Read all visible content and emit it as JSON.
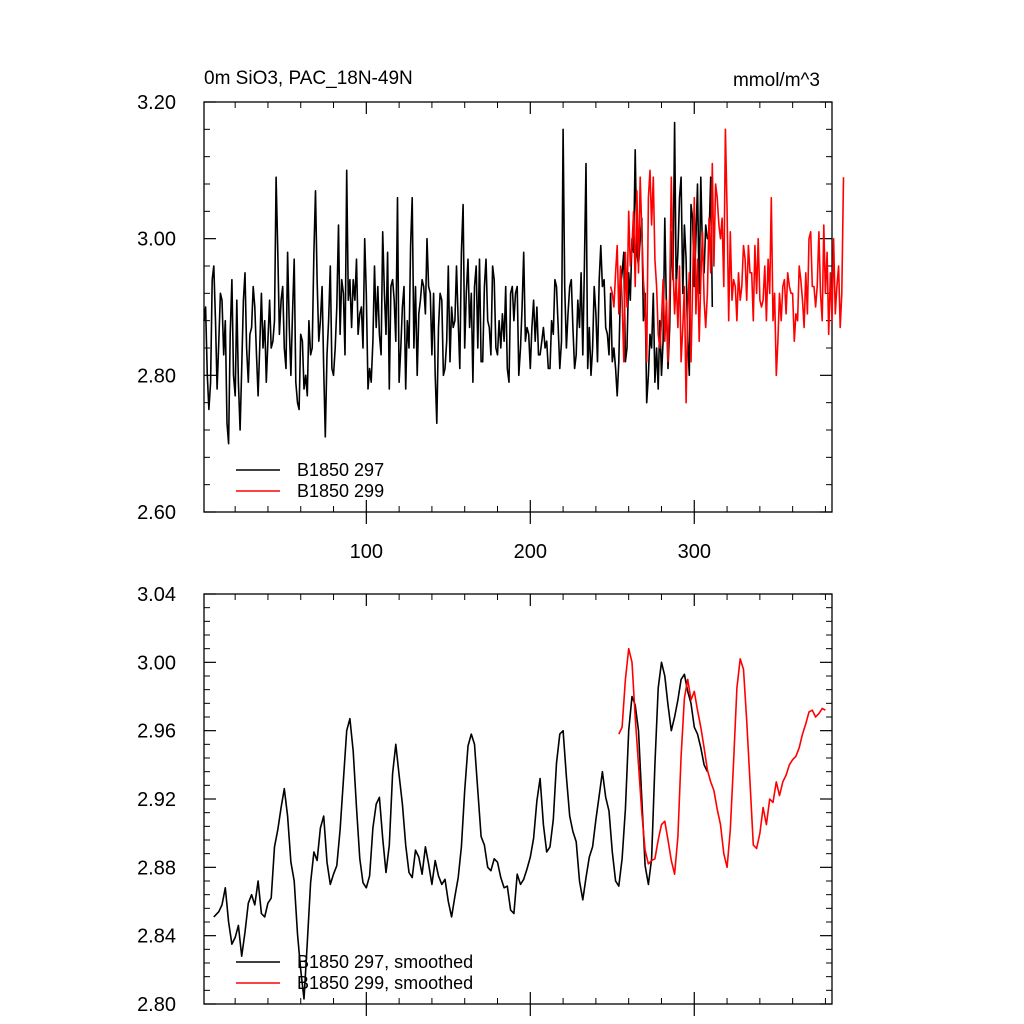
{
  "chart_data": [
    {
      "type": "line",
      "title": "0m SiO3, PAC_18N-49N",
      "units": "mmol/m^3",
      "xlim": [
        1,
        384
      ],
      "ylim": [
        2.6,
        3.2
      ],
      "x_ticks": [
        100,
        200,
        300
      ],
      "x_tick_labels": [
        "100",
        "200",
        "300"
      ],
      "y_ticks": [
        2.6,
        2.8,
        3.0,
        3.2
      ],
      "y_tick_labels": [
        "2.60",
        "2.80",
        "3.00",
        "3.20"
      ],
      "legend_position": "bottom-left",
      "series": [
        {
          "name": "B1850 297",
          "color": "#000000",
          "x_start": 1,
          "values": [
            2.88,
            2.9,
            2.8,
            2.75,
            2.79,
            2.94,
            2.96,
            2.88,
            2.78,
            2.85,
            2.92,
            2.91,
            2.83,
            2.88,
            2.73,
            2.7,
            2.86,
            2.94,
            2.8,
            2.77,
            2.91,
            2.79,
            2.72,
            2.81,
            2.91,
            2.95,
            2.84,
            2.79,
            2.86,
            2.87,
            2.93,
            2.9,
            2.83,
            2.77,
            2.84,
            2.92,
            2.84,
            2.88,
            2.79,
            2.85,
            2.91,
            2.84,
            2.85,
            2.88,
            3.09,
            2.98,
            2.86,
            2.91,
            2.93,
            2.84,
            2.81,
            2.98,
            2.87,
            2.8,
            2.89,
            2.97,
            2.79,
            2.76,
            2.75,
            2.86,
            2.85,
            2.78,
            2.8,
            2.77,
            2.88,
            2.83,
            2.84,
            2.98,
            3.07,
            2.94,
            2.85,
            2.88,
            2.93,
            2.81,
            2.71,
            2.83,
            2.88,
            2.96,
            2.81,
            2.8,
            2.84,
            2.9,
            3.02,
            2.86,
            2.94,
            2.92,
            2.83,
            3.1,
            2.91,
            2.94,
            2.87,
            2.94,
            2.91,
            2.97,
            2.86,
            2.89,
            2.9,
            2.84,
            3.0,
            2.92,
            2.78,
            2.81,
            2.79,
            2.85,
            2.96,
            2.87,
            2.93,
            2.86,
            2.83,
            3.01,
            2.92,
            2.86,
            2.98,
            2.78,
            2.93,
            2.94,
            2.91,
            2.85,
            3.06,
            2.79,
            2.84,
            2.9,
            2.93,
            2.78,
            2.88,
            2.84,
            2.99,
            3.06,
            2.84,
            2.93,
            2.8,
            2.89,
            2.91,
            2.94,
            2.93,
            2.89,
            3.0,
            2.93,
            2.92,
            2.83,
            2.92,
            2.8,
            2.73,
            2.87,
            2.92,
            2.91,
            2.8,
            2.81,
            2.85,
            2.96,
            2.82,
            2.9,
            2.87,
            2.88,
            2.96,
            2.88,
            2.81,
            2.98,
            3.05,
            2.84,
            2.92,
            2.97,
            2.87,
            2.92,
            2.79,
            2.93,
            2.96,
            2.84,
            2.97,
            2.82,
            2.82,
            2.93,
            2.97,
            2.88,
            2.87,
            2.83,
            2.96,
            2.94,
            2.84,
            2.83,
            2.88,
            2.84,
            2.89,
            2.85,
            2.93,
            2.81,
            2.79,
            2.92,
            2.93,
            2.88,
            2.92,
            2.93,
            2.8,
            2.84,
            2.9,
            2.98,
            2.85,
            2.87,
            2.86,
            2.81,
            2.87,
            2.91,
            2.85,
            2.9,
            2.83,
            2.83,
            2.85,
            2.87,
            2.84,
            2.85,
            2.81,
            2.81,
            2.88,
            2.86,
            2.94,
            2.93,
            2.87,
            2.81,
            2.85,
            3.16,
            2.93,
            2.84,
            2.89,
            2.93,
            2.94,
            2.87,
            2.81,
            2.83,
            2.91,
            2.87,
            2.95,
            2.83,
            2.96,
            3.11,
            2.81,
            2.87,
            2.8,
            2.84,
            2.93,
            2.89,
            2.82,
            2.94,
            2.99,
            2.93,
            2.94,
            2.87,
            2.86,
            2.83,
            2.92,
            2.82,
            2.84,
            2.81,
            2.77,
            2.82,
            2.93,
            2.95,
            2.98,
            2.82,
            2.84,
            2.95,
            2.91,
            3.0,
            2.98,
            3.13,
            2.98,
            2.96,
            3.0,
            3.03,
            2.88,
            2.92,
            2.76,
            2.8,
            2.86,
            2.84,
            2.92,
            2.79,
            2.84,
            2.78,
            2.88,
            2.8,
            2.85,
            3.03,
            2.9,
            2.81,
            2.87,
            3.01,
            2.94,
            3.17,
            2.93,
            2.98,
            3.06,
            3.09,
            2.92,
            3.02,
            2.97,
            2.85,
            2.8,
            3.05,
            3.03,
            2.93,
            3.0,
            3.08,
            2.92,
            3.09,
            2.98,
            2.95,
            3.02,
            3.0,
            3.0,
            3.09,
            2.9
          ]
        },
        {
          "name": "B1850 299",
          "color": "#ff0000",
          "x_start": 249,
          "values": [
            2.93,
            2.92,
            2.9,
            2.95,
            2.99,
            2.89,
            2.96,
            2.91,
            2.82,
            2.98,
            2.9,
            3.04,
            2.96,
            2.99,
            3.04,
            2.93,
            3.07,
            2.95,
            3.09,
            3.01,
            2.94,
            2.9,
            2.82,
            3.06,
            3.1,
            3.02,
            3.09,
            2.97,
            2.93,
            2.86,
            2.84,
            2.88,
            2.94,
            2.85,
            2.91,
            2.82,
            2.92,
            3.09,
            2.96,
            2.89,
            2.94,
            2.87,
            2.96,
            2.82,
            2.87,
            2.93,
            2.76,
            2.89,
            2.95,
            2.82,
            2.93,
            3.06,
            2.89,
            2.97,
            2.85,
            2.94,
            3.01,
            2.91,
            2.87,
            2.92,
            3.03,
            2.95,
            3.11,
            2.96,
            3.08,
            3.06,
            3.02,
            3.0,
            3.03,
            2.93,
            3.16,
            3.04,
            2.88,
            3.01,
            2.91,
            2.94,
            2.93,
            2.88,
            2.95,
            2.91,
            2.93,
            2.99,
            2.97,
            2.91,
            2.99,
            2.95,
            2.95,
            2.88,
            2.99,
            2.92,
            3.0,
            2.91,
            2.9,
            2.91,
            2.96,
            2.88,
            2.97,
            2.92,
            3.06,
            2.88,
            2.92,
            2.8,
            2.85,
            2.92,
            2.88,
            2.93,
            2.94,
            2.89,
            2.95,
            2.93,
            2.92,
            2.92,
            2.85,
            2.89,
            2.88,
            2.96,
            2.94,
            2.91,
            2.87,
            2.95,
            2.89,
            3.0,
            3.01,
            2.93,
            2.93,
            2.9,
            2.93,
            3.01,
            2.92,
            2.88,
            3.02,
            2.92,
            2.98,
            2.86,
            2.95,
            2.88,
            3.0,
            2.89,
            2.93,
            2.96,
            2.87,
            2.92,
            3.09
          ]
        }
      ]
    },
    {
      "type": "line",
      "title": "",
      "xlim": [
        1,
        384
      ],
      "ylim": [
        2.8,
        3.04
      ],
      "y_ticks": [
        2.8,
        2.84,
        2.88,
        2.92,
        2.96,
        3.0,
        3.04
      ],
      "y_tick_labels": [
        "2.80",
        "2.84",
        "2.88",
        "2.92",
        "2.96",
        "3.00",
        "3.04"
      ],
      "legend_position": "bottom-left",
      "series": [
        {
          "name": "B1850 297, smoothed",
          "color": "#000000",
          "x": [
            7,
            10,
            12,
            14,
            16,
            18,
            20,
            22,
            24,
            26,
            28,
            30,
            32,
            34,
            36,
            38,
            40,
            42,
            44,
            46,
            48,
            50,
            52,
            54,
            56,
            58,
            60,
            62,
            64,
            66,
            68,
            70,
            72,
            74,
            76,
            78,
            80,
            82,
            84,
            86,
            88,
            90,
            92,
            94,
            96,
            98,
            100,
            102,
            104,
            106,
            108,
            110,
            112,
            114,
            116,
            118,
            120,
            122,
            124,
            126,
            128,
            130,
            132,
            134,
            136,
            138,
            140,
            142,
            144,
            146,
            148,
            150,
            152,
            154,
            156,
            158,
            160,
            162,
            164,
            166,
            168,
            170,
            172,
            174,
            176,
            178,
            180,
            182,
            184,
            186,
            188,
            190,
            192,
            194,
            196,
            198,
            200,
            202,
            204,
            206,
            208,
            210,
            212,
            214,
            216,
            218,
            220,
            222,
            224,
            226,
            228,
            230,
            232,
            234,
            236,
            238,
            240,
            242,
            244,
            246,
            248,
            250,
            252,
            254,
            256,
            258,
            260,
            262,
            264,
            266,
            268,
            270,
            272,
            274,
            276,
            278,
            280,
            282,
            284,
            286,
            288,
            290,
            292,
            294,
            296,
            298,
            300,
            302,
            304,
            306,
            308
          ],
          "values": [
            2.851,
            2.854,
            2.858,
            2.868,
            2.848,
            2.835,
            2.839,
            2.846,
            2.828,
            2.842,
            2.859,
            2.864,
            2.858,
            2.872,
            2.853,
            2.851,
            2.859,
            2.862,
            2.892,
            2.902,
            2.915,
            2.926,
            2.91,
            2.883,
            2.872,
            2.841,
            2.82,
            2.803,
            2.836,
            2.871,
            2.889,
            2.884,
            2.903,
            2.91,
            2.883,
            2.87,
            2.876,
            2.881,
            2.902,
            2.931,
            2.96,
            2.967,
            2.948,
            2.915,
            2.885,
            2.871,
            2.868,
            2.875,
            2.903,
            2.917,
            2.921,
            2.897,
            2.877,
            2.893,
            2.935,
            2.952,
            2.934,
            2.917,
            2.893,
            2.877,
            2.874,
            2.89,
            2.886,
            2.876,
            2.892,
            2.882,
            2.87,
            2.884,
            2.875,
            2.87,
            2.873,
            2.86,
            2.851,
            2.863,
            2.874,
            2.892,
            2.925,
            2.951,
            2.958,
            2.952,
            2.925,
            2.898,
            2.893,
            2.88,
            2.878,
            2.885,
            2.883,
            2.874,
            2.868,
            2.869,
            2.855,
            2.853,
            2.876,
            2.87,
            2.873,
            2.879,
            2.886,
            2.897,
            2.919,
            2.932,
            2.905,
            2.889,
            2.892,
            2.908,
            2.941,
            2.958,
            2.96,
            2.933,
            2.91,
            2.901,
            2.895,
            2.872,
            2.861,
            2.874,
            2.886,
            2.892,
            2.908,
            2.922,
            2.936,
            2.921,
            2.913,
            2.889,
            2.872,
            2.869,
            2.885,
            2.914,
            2.96,
            2.98,
            2.975,
            2.96,
            2.92,
            2.881,
            2.87,
            2.885,
            2.94,
            2.985,
            3.0,
            2.992,
            2.975,
            2.96,
            2.968,
            2.978,
            2.99,
            2.993,
            2.983,
            2.976,
            2.962,
            2.958,
            2.95,
            2.94,
            2.936
          ]
        },
        {
          "name": "B1850 299, smoothed",
          "color": "#ff0000",
          "x": [
            254,
            256,
            258,
            260,
            262,
            264,
            266,
            268,
            270,
            272,
            274,
            276,
            278,
            280,
            282,
            284,
            286,
            288,
            290,
            292,
            294,
            296,
            298,
            300,
            302,
            304,
            306,
            308,
            310,
            312,
            314,
            316,
            318,
            320,
            322,
            324,
            326,
            328,
            330,
            332,
            334,
            336,
            338,
            340,
            342,
            344,
            346,
            348,
            350,
            352,
            354,
            356,
            358,
            360,
            362,
            364,
            366,
            368,
            370,
            372,
            374,
            376,
            378,
            380
          ],
          "values": [
            2.958,
            2.962,
            2.99,
            3.008,
            3.0,
            2.968,
            2.94,
            2.912,
            2.89,
            2.882,
            2.884,
            2.885,
            2.896,
            2.905,
            2.907,
            2.896,
            2.884,
            2.876,
            2.898,
            2.945,
            2.979,
            2.99,
            2.978,
            2.983,
            2.972,
            2.962,
            2.95,
            2.937,
            2.93,
            2.925,
            2.914,
            2.905,
            2.888,
            2.88,
            2.902,
            2.942,
            2.985,
            3.002,
            2.996,
            2.966,
            2.93,
            2.893,
            2.891,
            2.9,
            2.915,
            2.905,
            2.92,
            2.918,
            2.93,
            2.922,
            2.93,
            2.934,
            2.94,
            2.943,
            2.945,
            2.95,
            2.958,
            2.964,
            2.971,
            2.972,
            2.968,
            2.97,
            2.973,
            2.972
          ]
        }
      ]
    }
  ]
}
